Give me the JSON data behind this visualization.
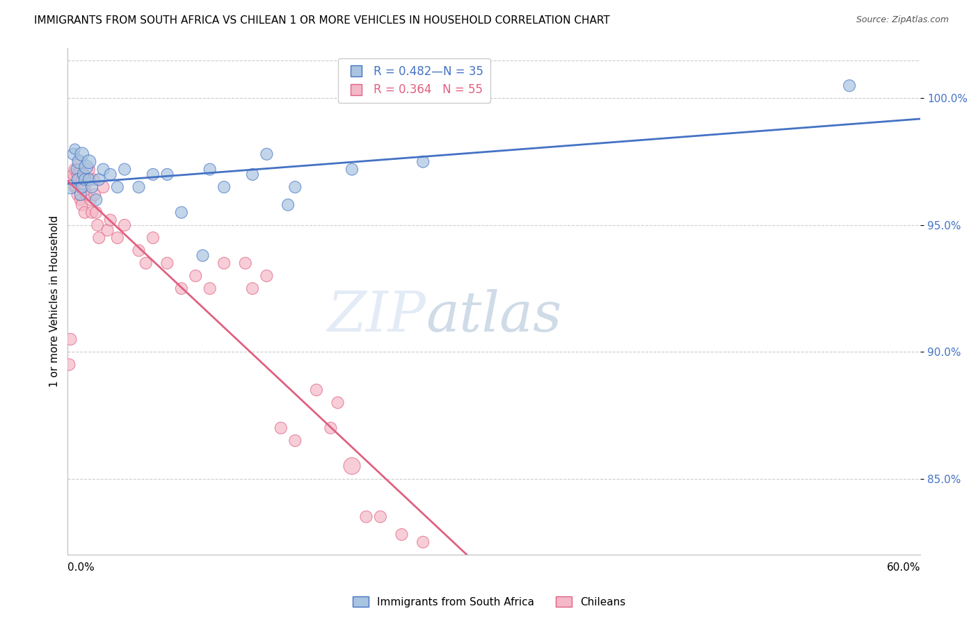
{
  "title": "IMMIGRANTS FROM SOUTH AFRICA VS CHILEAN 1 OR MORE VEHICLES IN HOUSEHOLD CORRELATION CHART",
  "source": "Source: ZipAtlas.com",
  "ylabel": "1 or more Vehicles in Household",
  "xlim": [
    0.0,
    60.0
  ],
  "ylim": [
    82.0,
    102.0
  ],
  "yticks": [
    85.0,
    90.0,
    95.0,
    100.0
  ],
  "ytick_labels": [
    "85.0%",
    "90.0%",
    "95.0%",
    "100.0%"
  ],
  "blue_r": 0.482,
  "blue_n": 35,
  "pink_r": 0.364,
  "pink_n": 55,
  "legend_label_blue": "Immigrants from South Africa",
  "legend_label_pink": "Chileans",
  "blue_color": "#a8c4e0",
  "pink_color": "#f4b8c8",
  "blue_line_color": "#4472c4",
  "pink_line_color": "#e06080",
  "background_color": "#ffffff",
  "watermark_zip": "ZIP",
  "watermark_atlas": "atlas",
  "blue_x": [
    0.2,
    0.4,
    0.5,
    0.6,
    0.7,
    0.8,
    0.9,
    1.0,
    1.0,
    1.1,
    1.2,
    1.3,
    1.5,
    1.5,
    1.7,
    2.0,
    2.2,
    2.5,
    3.0,
    3.5,
    4.0,
    5.0,
    6.0,
    7.0,
    8.0,
    9.5,
    10.0,
    11.0,
    13.0,
    14.0,
    15.5,
    16.0,
    20.0,
    25.0,
    55.0
  ],
  "blue_y": [
    96.5,
    97.8,
    98.0,
    97.2,
    96.8,
    97.5,
    96.2,
    97.8,
    96.5,
    97.0,
    96.8,
    97.3,
    97.5,
    96.8,
    96.5,
    96.0,
    96.8,
    97.2,
    97.0,
    96.5,
    97.2,
    96.5,
    97.0,
    97.0,
    95.5,
    93.8,
    97.2,
    96.5,
    97.0,
    97.8,
    95.8,
    96.5,
    97.2,
    97.5,
    100.5
  ],
  "blue_sizes": [
    200,
    150,
    120,
    120,
    150,
    200,
    150,
    200,
    150,
    150,
    150,
    200,
    200,
    150,
    150,
    150,
    150,
    150,
    150,
    150,
    150,
    150,
    150,
    150,
    150,
    150,
    150,
    150,
    150,
    150,
    150,
    150,
    150,
    150,
    150
  ],
  "pink_x": [
    0.1,
    0.2,
    0.3,
    0.4,
    0.5,
    0.5,
    0.6,
    0.7,
    0.7,
    0.8,
    0.8,
    0.9,
    0.9,
    1.0,
    1.0,
    1.1,
    1.1,
    1.2,
    1.2,
    1.3,
    1.4,
    1.5,
    1.6,
    1.7,
    1.8,
    1.9,
    2.0,
    2.1,
    2.2,
    2.5,
    2.8,
    3.0,
    3.5,
    4.0,
    5.0,
    5.5,
    6.0,
    7.0,
    8.0,
    9.0,
    10.0,
    11.0,
    12.5,
    13.0,
    14.0,
    15.0,
    16.0,
    17.5,
    18.5,
    19.0,
    20.0,
    21.0,
    22.0,
    23.5,
    25.0
  ],
  "pink_y": [
    89.5,
    90.5,
    96.8,
    97.0,
    96.5,
    97.2,
    96.5,
    97.0,
    96.2,
    97.5,
    96.8,
    96.0,
    97.2,
    96.8,
    95.8,
    97.0,
    96.5,
    95.5,
    96.5,
    96.2,
    96.8,
    97.2,
    96.0,
    95.5,
    96.8,
    96.2,
    95.5,
    95.0,
    94.5,
    96.5,
    94.8,
    95.2,
    94.5,
    95.0,
    94.0,
    93.5,
    94.5,
    93.5,
    92.5,
    93.0,
    92.5,
    93.5,
    93.5,
    92.5,
    93.0,
    87.0,
    86.5,
    88.5,
    87.0,
    88.0,
    85.5,
    83.5,
    83.5,
    82.8,
    82.5
  ],
  "pink_sizes": [
    150,
    150,
    150,
    150,
    150,
    150,
    150,
    150,
    150,
    150,
    150,
    150,
    150,
    150,
    150,
    150,
    150,
    150,
    150,
    150,
    150,
    150,
    150,
    150,
    150,
    150,
    150,
    150,
    150,
    150,
    150,
    150,
    150,
    150,
    150,
    150,
    150,
    150,
    150,
    150,
    150,
    150,
    150,
    150,
    150,
    150,
    150,
    150,
    150,
    150,
    300,
    150,
    150,
    150,
    150
  ]
}
